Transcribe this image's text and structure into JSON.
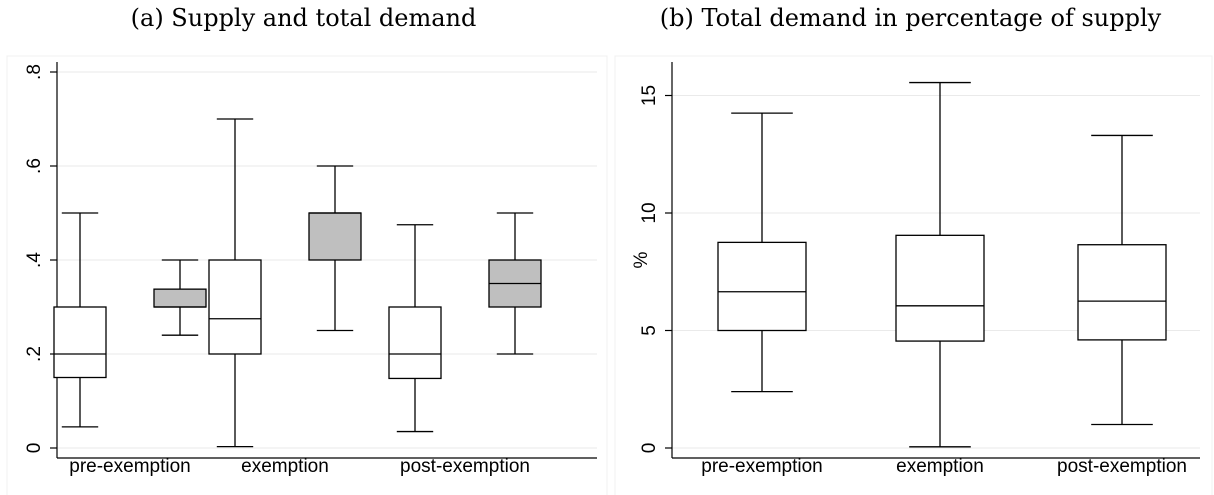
{
  "panels": [
    {
      "title": "(a) Supply and total demand"
    },
    {
      "title": "(b) Total demand in percentage of supply"
    }
  ],
  "colors": {
    "box_light": "#ffffff",
    "box_dark": "#bfbfbf",
    "grid": "#eaeaea",
    "stroke": "#000000",
    "plotregion_border": "#f0f0f0"
  },
  "chart_data": [
    {
      "type": "box",
      "title": "(a) Supply and total demand",
      "ylabel": "",
      "xlabel": "",
      "categories": [
        "pre-exemption",
        "exemption",
        "post-exemption"
      ],
      "ylim": [
        0,
        0.8
      ],
      "yticks": [
        0,
        0.2,
        0.4,
        0.6,
        0.8
      ],
      "ytick_labels": [
        "0",
        ".2",
        ".4",
        ".6",
        ".8"
      ],
      "grid": true,
      "series": [
        {
          "fill": "#ffffff",
          "boxes": [
            {
              "min": 0.045,
              "q1": 0.15,
              "median": 0.2,
              "q3": 0.3,
              "max": 0.5
            },
            {
              "min": 0.003,
              "q1": 0.2,
              "median": 0.275,
              "q3": 0.4,
              "max": 0.7
            },
            {
              "min": 0.035,
              "q1": 0.148,
              "median": 0.2,
              "q3": 0.3,
              "max": 0.475
            }
          ]
        },
        {
          "fill": "#bfbfbf",
          "boxes": [
            {
              "min": 0.24,
              "q1": 0.3,
              "median": 0.3,
              "q3": 0.338,
              "max": 0.4
            },
            {
              "min": 0.25,
              "q1": 0.4,
              "median": 0.5,
              "q3": 0.5,
              "max": 0.6
            },
            {
              "min": 0.2,
              "q1": 0.3,
              "median": 0.35,
              "q3": 0.4,
              "max": 0.5
            }
          ]
        }
      ]
    },
    {
      "type": "box",
      "title": "(b) Total demand in percentage of supply",
      "ylabel": "%",
      "xlabel": "",
      "categories": [
        "pre-exemption",
        "exemption",
        "post-exemption"
      ],
      "ylim": [
        0,
        16
      ],
      "yticks": [
        0,
        5,
        10,
        15
      ],
      "ytick_labels": [
        "0",
        "5",
        "10",
        "15"
      ],
      "grid": true,
      "series": [
        {
          "fill": "#ffffff",
          "boxes": [
            {
              "min": 2.4,
              "q1": 5.0,
              "median": 6.65,
              "q3": 8.75,
              "max": 14.25
            },
            {
              "min": 0.05,
              "q1": 4.55,
              "median": 6.05,
              "q3": 9.05,
              "max": 15.55
            },
            {
              "min": 1.0,
              "q1": 4.6,
              "median": 6.25,
              "q3": 8.65,
              "max": 13.3
            }
          ]
        }
      ]
    }
  ]
}
